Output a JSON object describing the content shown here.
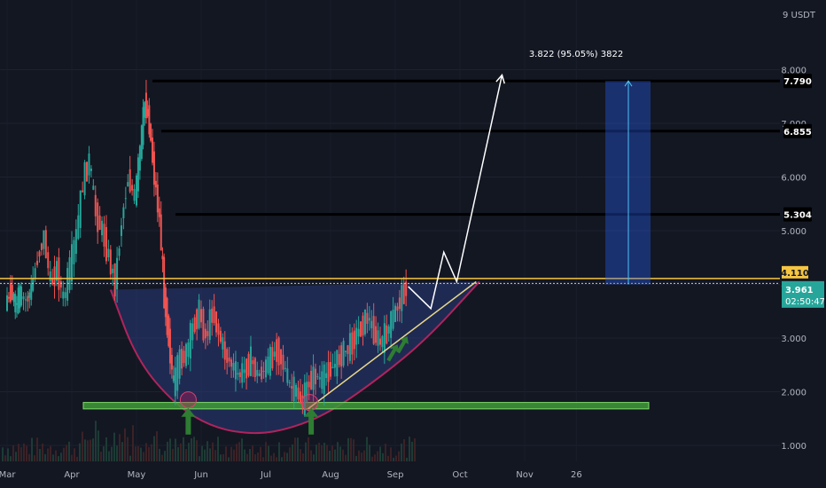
{
  "chart_data": {
    "type": "candlestick",
    "currency": "9 USDT",
    "y_ticks": [
      "1.000",
      "2.000",
      "3.000",
      "4.000",
      "5.000",
      "6.000",
      "7.000",
      "8.000"
    ],
    "y_tick_values": [
      1,
      2,
      3,
      4,
      5,
      6,
      7,
      8
    ],
    "x_ticks": [
      "Mar",
      "Apr",
      "May",
      "Jun",
      "Jul",
      "Aug",
      "Sep",
      "Oct",
      "Nov",
      "26"
    ],
    "ylim": [
      0.6,
      9.2
    ],
    "price_series": [
      {
        "t": 0,
        "p": 3.6
      },
      {
        "t": 0.08,
        "p": 3.9
      },
      {
        "t": 0.15,
        "p": 3.6
      },
      {
        "t": 0.22,
        "p": 3.8
      },
      {
        "t": 0.32,
        "p": 3.7
      },
      {
        "t": 0.4,
        "p": 3.9
      },
      {
        "t": 0.5,
        "p": 4.5
      },
      {
        "t": 0.6,
        "p": 4.9
      },
      {
        "t": 0.7,
        "p": 4.0
      },
      {
        "t": 0.8,
        "p": 4.3
      },
      {
        "t": 0.9,
        "p": 3.7
      },
      {
        "t": 1.0,
        "p": 4.3
      },
      {
        "t": 1.1,
        "p": 4.9
      },
      {
        "t": 1.2,
        "p": 5.9
      },
      {
        "t": 1.3,
        "p": 6.3
      },
      {
        "t": 1.4,
        "p": 5.3
      },
      {
        "t": 1.5,
        "p": 5.0
      },
      {
        "t": 1.6,
        "p": 4.5
      },
      {
        "t": 1.7,
        "p": 4.0
      },
      {
        "t": 1.8,
        "p": 5.2
      },
      {
        "t": 1.9,
        "p": 6.0
      },
      {
        "t": 2.0,
        "p": 5.6
      },
      {
        "t": 2.08,
        "p": 6.5
      },
      {
        "t": 2.15,
        "p": 7.4
      },
      {
        "t": 2.22,
        "p": 7.0
      },
      {
        "t": 2.3,
        "p": 6.0
      },
      {
        "t": 2.38,
        "p": 5.2
      },
      {
        "t": 2.45,
        "p": 3.8
      },
      {
        "t": 2.52,
        "p": 3.0
      },
      {
        "t": 2.6,
        "p": 2.1
      },
      {
        "t": 2.7,
        "p": 2.6
      },
      {
        "t": 2.8,
        "p": 2.7
      },
      {
        "t": 2.9,
        "p": 3.2
      },
      {
        "t": 3.0,
        "p": 3.5
      },
      {
        "t": 3.1,
        "p": 3.0
      },
      {
        "t": 3.2,
        "p": 3.5
      },
      {
        "t": 3.3,
        "p": 3.1
      },
      {
        "t": 3.4,
        "p": 2.7
      },
      {
        "t": 3.5,
        "p": 2.5
      },
      {
        "t": 3.6,
        "p": 2.3
      },
      {
        "t": 3.7,
        "p": 2.4
      },
      {
        "t": 3.8,
        "p": 2.6
      },
      {
        "t": 3.9,
        "p": 2.3
      },
      {
        "t": 4.0,
        "p": 2.4
      },
      {
        "t": 4.1,
        "p": 2.6
      },
      {
        "t": 4.2,
        "p": 2.8
      },
      {
        "t": 4.3,
        "p": 2.5
      },
      {
        "t": 4.4,
        "p": 2.1
      },
      {
        "t": 4.5,
        "p": 2.0
      },
      {
        "t": 4.6,
        "p": 1.8
      },
      {
        "t": 4.7,
        "p": 2.2
      },
      {
        "t": 4.8,
        "p": 2.3
      },
      {
        "t": 4.9,
        "p": 2.2
      },
      {
        "t": 5.0,
        "p": 2.4
      },
      {
        "t": 5.1,
        "p": 2.5
      },
      {
        "t": 5.2,
        "p": 2.7
      },
      {
        "t": 5.3,
        "p": 2.8
      },
      {
        "t": 5.4,
        "p": 3.0
      },
      {
        "t": 5.5,
        "p": 3.2
      },
      {
        "t": 5.6,
        "p": 3.4
      },
      {
        "t": 5.7,
        "p": 3.1
      },
      {
        "t": 5.8,
        "p": 2.9
      },
      {
        "t": 5.9,
        "p": 3.1
      },
      {
        "t": 6.0,
        "p": 3.4
      },
      {
        "t": 6.1,
        "p": 3.7
      },
      {
        "t": 6.2,
        "p": 3.96
      }
    ],
    "horizontal_levels": [
      {
        "label": "7.790",
        "value": 7.79
      },
      {
        "label": "6.855",
        "value": 6.855
      },
      {
        "label": "5.304",
        "value": 5.304
      }
    ],
    "resistance_levels": [
      {
        "label": "4.110",
        "value": 4.11
      },
      {
        "label": "4.019",
        "value": 4.019
      }
    ],
    "current_price": {
      "label": "3.961",
      "value": 3.961,
      "countdown": "02:50:47"
    },
    "support_zone": {
      "from": 1.68,
      "to": 1.8
    },
    "target_annotation": "3.822 (95.05%) 3822",
    "projection_path": [
      {
        "t": 6.2,
        "p": 3.96
      },
      {
        "t": 6.55,
        "p": 3.55
      },
      {
        "t": 6.75,
        "p": 4.6
      },
      {
        "t": 6.95,
        "p": 4.05
      },
      {
        "t": 7.65,
        "p": 7.9
      }
    ],
    "trendline": [
      {
        "t": 4.65,
        "p": 1.68
      },
      {
        "t": 7.25,
        "p": 4.05
      }
    ],
    "cup_curve": [
      {
        "t": 1.6,
        "p": 3.9
      },
      {
        "t": 2.0,
        "p": 2.6
      },
      {
        "t": 2.6,
        "p": 1.75
      },
      {
        "t": 3.2,
        "p": 1.32
      },
      {
        "t": 3.85,
        "p": 1.2
      },
      {
        "t": 4.4,
        "p": 1.32
      },
      {
        "t": 5.0,
        "p": 1.62
      },
      {
        "t": 5.8,
        "p": 2.3
      },
      {
        "t": 6.5,
        "p": 3.0
      },
      {
        "t": 7.3,
        "p": 4.05
      }
    ],
    "arrows_up": [
      {
        "t": 2.8,
        "p": 1.4
      },
      {
        "t": 4.7,
        "p": 1.4
      },
      {
        "t": 5.95,
        "p": 2.7
      },
      {
        "t": 6.1,
        "p": 2.85
      }
    ],
    "circles": [
      {
        "t": 2.8,
        "p": 1.85
      },
      {
        "t": 4.68,
        "p": 1.8
      }
    ]
  }
}
